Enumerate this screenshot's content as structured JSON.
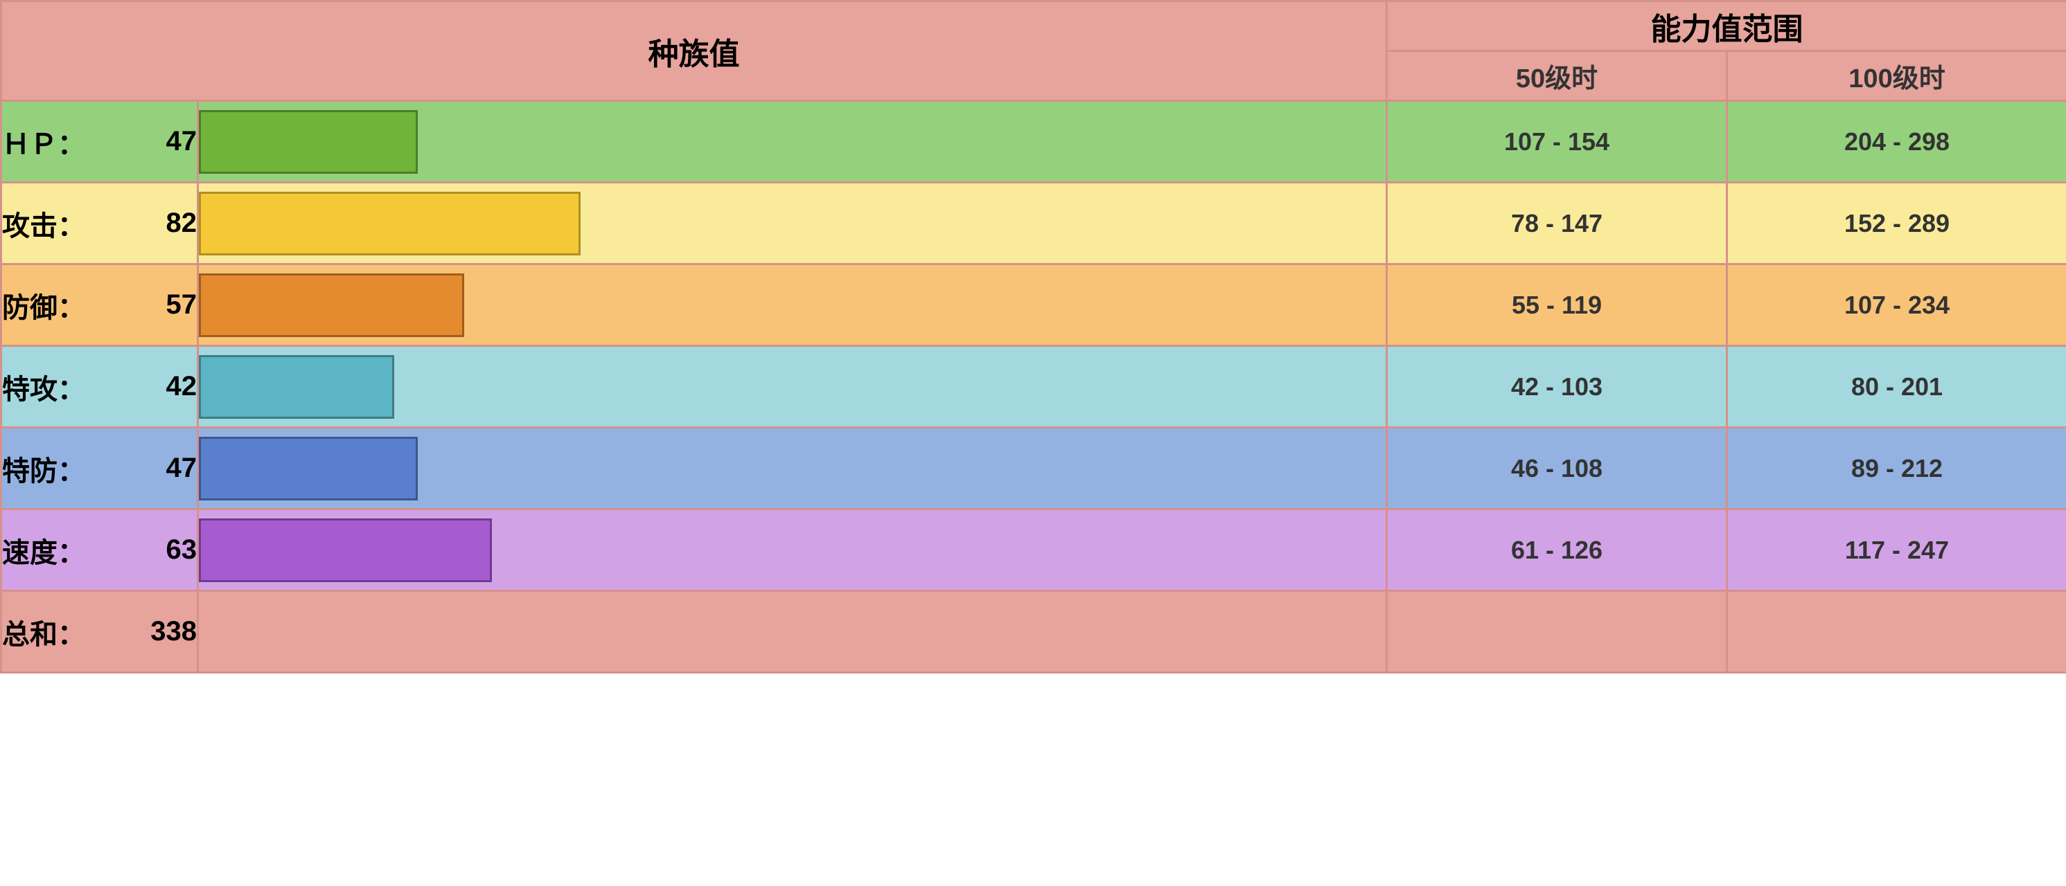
{
  "headers": {
    "base_stats": "种族值",
    "stat_range": "能力值范围",
    "lv50": "50级时",
    "lv100": "100级时"
  },
  "header_bg": "#e6a49c",
  "border_color": "#d6918b",
  "bar_max": 255,
  "stats": [
    {
      "label": "ＨＰ：",
      "value": 47,
      "range50": "107 - 154",
      "range100": "204 - 298",
      "row_bg": "#95d17d",
      "bar_fill": "#70b53a",
      "bar_border": "#4b7d2a"
    },
    {
      "label": "攻击：",
      "value": 82,
      "range50": "78 - 147",
      "range100": "152 - 289",
      "row_bg": "#faeb9a",
      "bar_fill": "#f5c838",
      "bar_border": "#b08f20"
    },
    {
      "label": "防御：",
      "value": 57,
      "range50": "55 - 119",
      "range100": "107 - 234",
      "row_bg": "#f9c377",
      "bar_fill": "#e58b2f",
      "bar_border": "#a05e1c"
    },
    {
      "label": "特攻：",
      "value": 42,
      "range50": "42 - 103",
      "range100": "80 - 201",
      "row_bg": "#a3d8de",
      "bar_fill": "#5bb5c4",
      "bar_border": "#3c7d86"
    },
    {
      "label": "特防：",
      "value": 47,
      "range50": "46 - 108",
      "range100": "89 - 212",
      "row_bg": "#93b2e1",
      "bar_fill": "#5a7fcc",
      "bar_border": "#3c568f"
    },
    {
      "label": "速度：",
      "value": 63,
      "range50": "61 - 126",
      "range100": "117 - 247",
      "row_bg": "#d1a3e6",
      "bar_fill": "#a65cd0",
      "bar_border": "#6f3b8f"
    }
  ],
  "total": {
    "label": "总和：",
    "value": 338,
    "row_bg": "#e6a49c"
  },
  "column_widths": {
    "label": 174,
    "value": 110,
    "bar": 1716,
    "range": 491
  }
}
